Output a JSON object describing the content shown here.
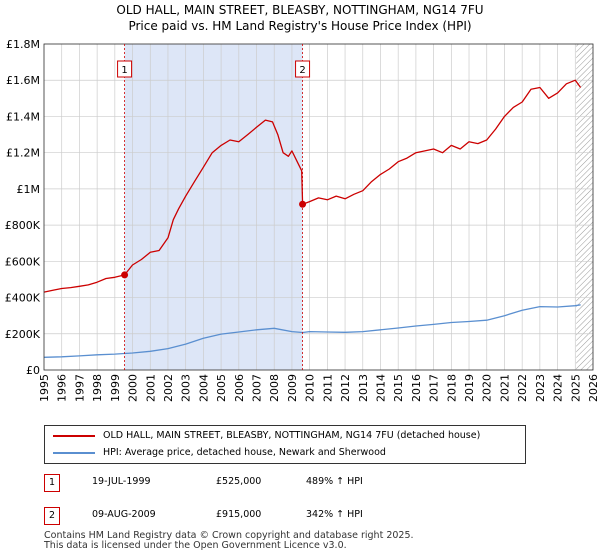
{
  "title_line1": "OLD HALL, MAIN STREET, BLEASBY, NOTTINGHAM, NG14 7FU",
  "title_line2": "Price paid vs. HM Land Registry's House Price Index (HPI)",
  "legend": {
    "property_label": "OLD HALL, MAIN STREET, BLEASBY, NOTTINGHAM, NG14 7FU (detached house)",
    "hpi_label": "HPI: Average price, detached house, Newark and Sherwood"
  },
  "annotations": [
    {
      "badge": "1",
      "date": "19-JUL-1999",
      "price": "£525,000",
      "hpi": "489% ↑ HPI"
    },
    {
      "badge": "2",
      "date": "09-AUG-2009",
      "price": "£915,000",
      "hpi": "342% ↑ HPI"
    }
  ],
  "footer_line1": "Contains HM Land Registry data © Crown copyright and database right 2025.",
  "footer_line2": "This data is licensed under the Open Government Licence v3.0.",
  "colors": {
    "property": "#cc0000",
    "hpi": "#5a8fd0",
    "shade": "#dde6f7",
    "grid": "#cccccc",
    "hatch": "#999999"
  },
  "chart_data": {
    "type": "line",
    "xlim": [
      1995,
      2026
    ],
    "ylim": [
      0,
      1800000
    ],
    "x_ticks": [
      "1995",
      "1996",
      "1997",
      "1998",
      "1999",
      "2000",
      "2001",
      "2002",
      "2003",
      "2004",
      "2005",
      "2006",
      "2007",
      "2008",
      "2009",
      "2010",
      "2011",
      "2012",
      "2013",
      "2014",
      "2015",
      "2016",
      "2017",
      "2018",
      "2019",
      "2020",
      "2021",
      "2022",
      "2023",
      "2024",
      "2025",
      "2026"
    ],
    "y_ticks": [
      {
        "value": 0,
        "label": "£0"
      },
      {
        "value": 200000,
        "label": "£200K"
      },
      {
        "value": 400000,
        "label": "£400K"
      },
      {
        "value": 600000,
        "label": "£600K"
      },
      {
        "value": 800000,
        "label": "£800K"
      },
      {
        "value": 1000000,
        "label": "£1M"
      },
      {
        "value": 1200000,
        "label": "£1.2M"
      },
      {
        "value": 1400000,
        "label": "£1.4M"
      },
      {
        "value": 1600000,
        "label": "£1.6M"
      },
      {
        "value": 1800000,
        "label": "£1.8M"
      }
    ],
    "shaded_range": [
      1999.55,
      2009.6
    ],
    "hatched_from": 2025.05,
    "sales": [
      {
        "label": "1",
        "x": 1999.55,
        "y": 525000
      },
      {
        "label": "2",
        "x": 2009.6,
        "y": 915000
      }
    ],
    "series": [
      {
        "name": "OLD HALL, MAIN STREET, BLEASBY, NOTTINGHAM, NG14 7FU (detached house)",
        "x": [
          1995.0,
          1995.5,
          1996.0,
          1996.5,
          1997.0,
          1997.5,
          1998.0,
          1998.5,
          1999.0,
          1999.55,
          2000.0,
          2000.5,
          2001.0,
          2001.5,
          2002.0,
          2002.3,
          2002.6,
          2003.0,
          2003.5,
          2004.0,
          2004.5,
          2005.0,
          2005.5,
          2006.0,
          2006.5,
          2007.0,
          2007.5,
          2007.9,
          2008.2,
          2008.5,
          2008.8,
          2009.0,
          2009.3,
          2009.55,
          2009.6,
          2010.0,
          2010.5,
          2011.0,
          2011.5,
          2012.0,
          2012.5,
          2013.0,
          2013.5,
          2014.0,
          2014.5,
          2015.0,
          2015.5,
          2016.0,
          2016.5,
          2017.0,
          2017.5,
          2018.0,
          2018.5,
          2019.0,
          2019.5,
          2020.0,
          2020.5,
          2021.0,
          2021.5,
          2022.0,
          2022.5,
          2023.0,
          2023.5,
          2024.0,
          2024.5,
          2025.0,
          2025.3
        ],
        "y": [
          430000,
          440000,
          450000,
          455000,
          462000,
          470000,
          485000,
          505000,
          512000,
          525000,
          580000,
          610000,
          650000,
          660000,
          730000,
          830000,
          890000,
          960000,
          1040000,
          1120000,
          1200000,
          1240000,
          1270000,
          1260000,
          1300000,
          1340000,
          1380000,
          1370000,
          1300000,
          1200000,
          1180000,
          1210000,
          1150000,
          1100000,
          915000,
          930000,
          950000,
          940000,
          960000,
          945000,
          970000,
          990000,
          1040000,
          1080000,
          1110000,
          1150000,
          1170000,
          1200000,
          1210000,
          1220000,
          1200000,
          1240000,
          1220000,
          1260000,
          1250000,
          1270000,
          1330000,
          1400000,
          1450000,
          1480000,
          1550000,
          1560000,
          1500000,
          1530000,
          1580000,
          1600000,
          1560000
        ]
      },
      {
        "name": "HPI: Average price, detached house, Newark and Sherwood",
        "x": [
          1995.0,
          1996.0,
          1997.0,
          1998.0,
          1999.0,
          2000.0,
          2001.0,
          2002.0,
          2003.0,
          2004.0,
          2005.0,
          2006.0,
          2007.0,
          2008.0,
          2009.0,
          2009.6,
          2010.0,
          2011.0,
          2012.0,
          2013.0,
          2014.0,
          2015.0,
          2016.0,
          2017.0,
          2018.0,
          2019.0,
          2020.0,
          2021.0,
          2022.0,
          2023.0,
          2024.0,
          2025.0,
          2025.3
        ],
        "y": [
          70000,
          73000,
          78000,
          84000,
          88000,
          94000,
          103000,
          118000,
          143000,
          175000,
          198000,
          210000,
          222000,
          230000,
          212000,
          207000,
          212000,
          210000,
          208000,
          212000,
          222000,
          232000,
          243000,
          252000,
          262000,
          268000,
          275000,
          300000,
          330000,
          350000,
          348000,
          355000,
          360000
        ]
      }
    ]
  }
}
